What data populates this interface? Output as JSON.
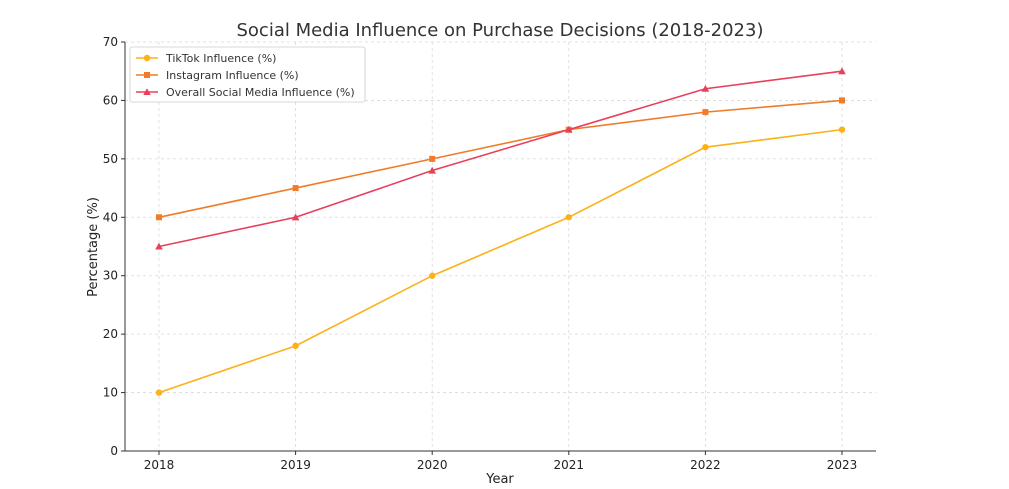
{
  "chart_data": {
    "type": "line",
    "title": "Social Media Influence on Purchase Decisions (2018-2023)",
    "xlabel": "Year",
    "ylabel": "Percentage (%)",
    "categories": [
      "2018",
      "2019",
      "2020",
      "2021",
      "2022",
      "2023"
    ],
    "ylim": [
      0,
      70
    ],
    "yticks": [
      "0",
      "10",
      "20",
      "30",
      "40",
      "50",
      "60",
      "70"
    ],
    "grid": true,
    "legend_position": "top-left",
    "series": [
      {
        "name": "TikTok Influence (%)",
        "values": [
          10,
          18,
          30,
          40,
          52,
          55
        ],
        "color": "#fbb117",
        "marker": "circle"
      },
      {
        "name": "Instagram Influence (%)",
        "values": [
          40,
          45,
          50,
          55,
          58,
          60
        ],
        "color": "#f07c2a",
        "marker": "square"
      },
      {
        "name": "Overall Social Media Influence (%)",
        "values": [
          35,
          40,
          48,
          55,
          62,
          65
        ],
        "color": "#e8405a",
        "marker": "triangle"
      }
    ]
  }
}
